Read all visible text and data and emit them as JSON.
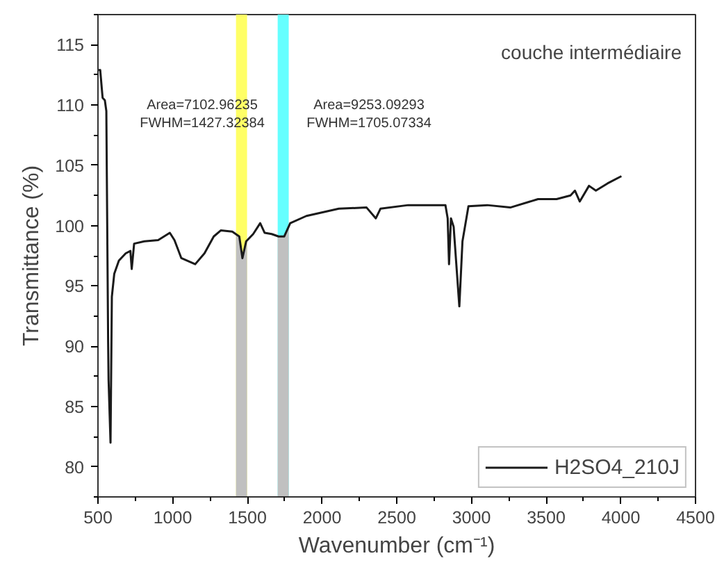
{
  "chart_data": {
    "type": "line",
    "title": "couche intermédiaire",
    "xlabel": "Wavenumber (cm⁻¹)",
    "ylabel": "Transmittance (%)",
    "xlim": [
      500,
      4500
    ],
    "ylim": [
      77.5,
      117.5
    ],
    "xticks": [
      500,
      1000,
      1500,
      2000,
      2500,
      3000,
      3500,
      4000,
      4500
    ],
    "yticks": [
      80,
      85,
      90,
      95,
      100,
      105,
      110,
      115
    ],
    "grid": false,
    "legend": "bottom right",
    "marker": "none",
    "line_style": "solid",
    "bands": [
      {
        "axis": "x",
        "from": 1424,
        "to": 1498,
        "color": "#ffff66"
      },
      {
        "axis": "x",
        "from": 1703,
        "to": 1777,
        "color": "#66ffff"
      }
    ],
    "annotations": [
      "Area=7102.96235\nFWHM=1427.32384",
      "Area=9253.09293\nFWHM=1705.07334"
    ],
    "series": [
      {
        "type": "area",
        "color": "#c0c0c0",
        "x": [
          1424,
          1446,
          1467,
          1492,
          1498
        ],
        "values": [
          99.3,
          99.1,
          97.3,
          98.7,
          98.8
        ]
      },
      {
        "type": "area",
        "color": "#c0c0c0",
        "x": [
          1703,
          1709,
          1747,
          1777
        ],
        "values": [
          99.1,
          99.1,
          99.1,
          99.9
        ]
      },
      {
        "name": "H2SO4_210J",
        "color": "#1a1a1a",
        "x": [
          500,
          515,
          531,
          546,
          556,
          568,
          571,
          584,
          593,
          609,
          640,
          686,
          717,
          726,
          742,
          810,
          903,
          981,
          1012,
          1058,
          1151,
          1213,
          1275,
          1322,
          1399,
          1446,
          1467,
          1492,
          1539,
          1586,
          1616,
          1663,
          1709,
          1747,
          1787,
          1895,
          2112,
          2298,
          2360,
          2391,
          2577,
          2826,
          2841,
          2850,
          2863,
          2881,
          2919,
          2940,
          2980,
          3105,
          3260,
          3446,
          3570,
          3663,
          3693,
          3725,
          3787,
          3833,
          3911,
          4004
        ],
        "values": [
          112.9,
          112.9,
          110.6,
          110.4,
          109.5,
          90.4,
          87.2,
          82,
          94.1,
          96,
          97.1,
          97.7,
          97.9,
          96.4,
          98.5,
          98.7,
          98.8,
          99.4,
          98.8,
          97.3,
          96.8,
          97.7,
          99.1,
          99.6,
          99.5,
          99.1,
          97.3,
          98.7,
          99.3,
          100.2,
          99.4,
          99.3,
          99.1,
          99.1,
          100.2,
          100.8,
          101.4,
          101.5,
          100.6,
          101.4,
          101.7,
          101.7,
          100.6,
          96.8,
          100.6,
          99.9,
          93.3,
          98.7,
          101.6,
          101.7,
          101.5,
          102.2,
          102.2,
          102.5,
          102.9,
          102.0,
          103.3,
          102.9,
          103.5,
          104.1
        ]
      }
    ]
  }
}
